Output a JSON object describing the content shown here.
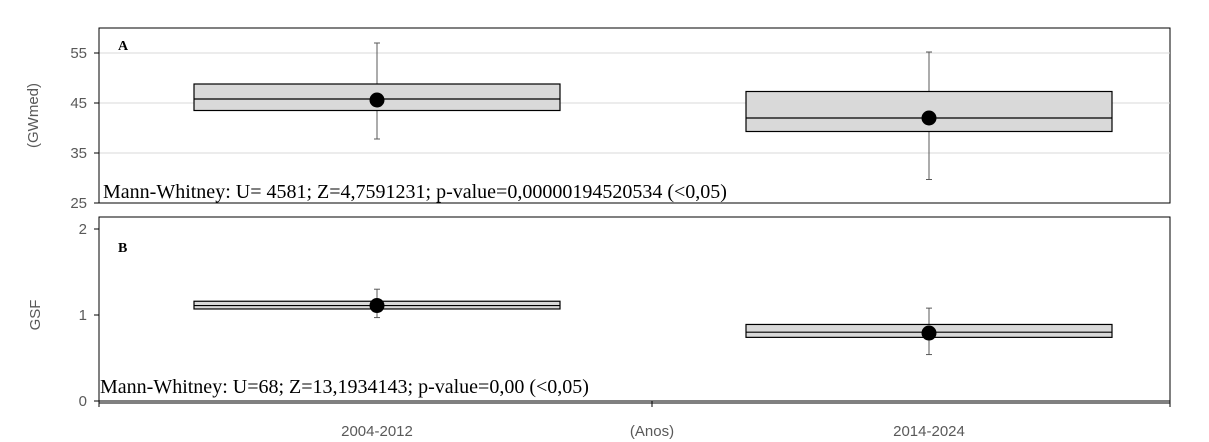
{
  "chart_data": [
    {
      "type": "box",
      "panel_label": "A",
      "ylabel": "(GWmed)",
      "ylim": [
        25,
        60
      ],
      "yticks": [
        25,
        35,
        45,
        55
      ],
      "categories": [
        "2004-2012",
        "2014-2024"
      ],
      "boxes": [
        {
          "category": "2004-2012",
          "min": 37.8,
          "q1": 43.5,
          "median": 45.8,
          "q3": 48.8,
          "max": 57.0,
          "mean": 45.6
        },
        {
          "category": "2014-2024",
          "min": 29.7,
          "q1": 39.3,
          "median": 42.0,
          "q3": 47.3,
          "max": 55.2,
          "mean": 42.0
        }
      ],
      "annotation": "Mann-Whitney: U= 4581; Z=4,7591231; p-value=0,00000194520534 (<0,05)",
      "grid": true
    },
    {
      "type": "box",
      "panel_label": "B",
      "ylabel": "GSF",
      "ylim": [
        0,
        2
      ],
      "yticks": [
        0,
        1,
        2
      ],
      "categories": [
        "2004-2012",
        "2014-2024"
      ],
      "xlabel": "(Anos)",
      "boxes": [
        {
          "category": "2004-2012",
          "min": 0.97,
          "q1": 1.07,
          "median": 1.11,
          "q3": 1.16,
          "max": 1.3,
          "mean": 1.11
        },
        {
          "category": "2014-2024",
          "min": 0.54,
          "q1": 0.74,
          "median": 0.8,
          "q3": 0.89,
          "max": 1.08,
          "mean": 0.79
        }
      ],
      "annotation": "Mann-Whitney: U=68; Z=13,1934143; p-value=0,00 (<0,05)",
      "grid": false
    }
  ],
  "colors": {
    "box_fill": "#d9d9d9",
    "box_stroke": "#000000",
    "whisker": "#595959",
    "mean_marker": "#000000",
    "gridline": "#d9d9d9",
    "axis": "#000000"
  }
}
